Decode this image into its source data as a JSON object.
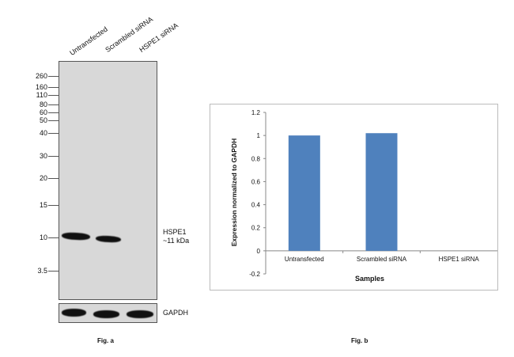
{
  "fig_a": {
    "caption": "Fig. a",
    "lanes": [
      "Untransfected",
      "Scrambled siRNA",
      "HSPE1 siRNA"
    ],
    "markers": [
      "260",
      "160",
      "110",
      "80",
      "60",
      "50",
      "40",
      "30",
      "20",
      "15",
      "10",
      "3.5"
    ],
    "band_label": "HSPE1",
    "band_size": "~11 kDa",
    "loading_control": "GAPDH"
  },
  "fig_b": {
    "caption": "Fig. b"
  },
  "chart_data": {
    "type": "bar",
    "title": "",
    "categories": [
      "Untransfected",
      "Scrambled siRNA",
      "HSPE1 siRNA"
    ],
    "values": [
      1.0,
      1.02,
      0.0
    ],
    "xlabel": "Samples",
    "ylabel": "Expression normalized to GAPDH",
    "ylim": [
      -0.2,
      1.2
    ],
    "yticks": [
      "1.2",
      "1",
      "0.8",
      "0.6",
      "0.4",
      "0.2",
      "0",
      "-0.2"
    ],
    "ytick_values": [
      1.2,
      1,
      0.8,
      0.6,
      0.4,
      0.2,
      0,
      -0.2
    ],
    "bar_color": "#4f81bd",
    "grid": false,
    "legend": "none"
  }
}
